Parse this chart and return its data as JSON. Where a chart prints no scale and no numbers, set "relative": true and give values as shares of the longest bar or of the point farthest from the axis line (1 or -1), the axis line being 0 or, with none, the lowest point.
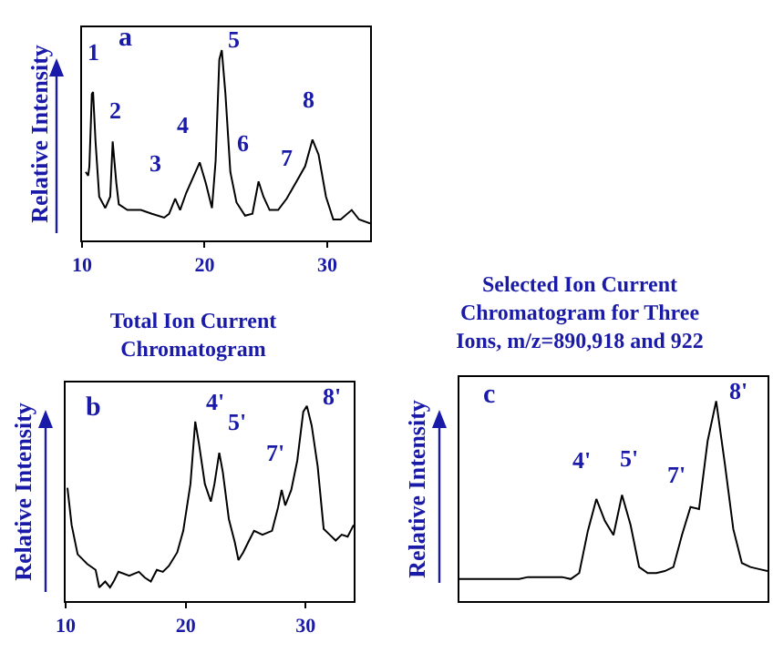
{
  "chart_data": [
    {
      "type": "line",
      "relative": true,
      "ylabel": "Relative Intensity",
      "xlim": [
        10,
        33.5
      ],
      "xticks": [
        10,
        20,
        30
      ],
      "tick_labels": "x",
      "x": [
        10.3,
        10.5,
        10.6,
        10.8,
        10.9,
        11.1,
        11.4,
        11.9,
        12.3,
        12.5,
        12.8,
        13.0,
        13.7,
        14.8,
        15.7,
        16.7,
        17.1,
        17.6,
        18.0,
        18.5,
        19.6,
        20.1,
        20.6,
        20.9,
        21.2,
        21.4,
        21.7,
        22.1,
        22.6,
        23.3,
        23.9,
        24.4,
        24.8,
        25.3,
        26.0,
        26.7,
        27.5,
        28.2,
        28.8,
        29.3,
        29.9,
        30.5,
        31.1,
        32.0,
        32.6,
        33.5
      ],
      "series": [
        {
          "color": "#000000",
          "values": [
            0.36,
            0.34,
            0.39,
            0.77,
            0.78,
            0.52,
            0.23,
            0.17,
            0.23,
            0.52,
            0.3,
            0.19,
            0.16,
            0.16,
            0.14,
            0.12,
            0.14,
            0.22,
            0.16,
            0.25,
            0.41,
            0.3,
            0.17,
            0.42,
            0.95,
            1.0,
            0.77,
            0.36,
            0.2,
            0.13,
            0.14,
            0.31,
            0.23,
            0.16,
            0.16,
            0.22,
            0.31,
            0.39,
            0.53,
            0.45,
            0.23,
            0.11,
            0.11,
            0.16,
            0.11,
            0.09
          ]
        }
      ],
      "annotations": [
        "a",
        "1",
        "2",
        "3",
        "4",
        "5",
        "6",
        "7",
        "8"
      ]
    },
    {
      "type": "line",
      "relative": true,
      "title": "Total Ion Current Chromatogram",
      "ylabel": "Relative Intensity",
      "xlim": [
        10,
        34
      ],
      "xticks": [
        10,
        20,
        30
      ],
      "tick_labels": "x",
      "x": [
        10.15,
        10.5,
        11.0,
        11.8,
        12.5,
        12.8,
        13.3,
        13.7,
        14.0,
        14.4,
        15.3,
        16.1,
        16.6,
        17.1,
        17.6,
        18.1,
        18.6,
        19.3,
        19.8,
        20.4,
        20.8,
        21.1,
        21.6,
        22.1,
        22.4,
        22.8,
        23.1,
        23.6,
        24.1,
        24.4,
        24.8,
        25.2,
        25.7,
        26.4,
        27.2,
        27.7,
        28.0,
        28.3,
        28.8,
        29.3,
        29.8,
        30.1,
        30.5,
        31.0,
        31.5,
        32.0,
        32.5,
        33.0,
        33.5,
        34.0
      ],
      "series": [
        {
          "color": "#000000",
          "values": [
            0.58,
            0.39,
            0.24,
            0.19,
            0.16,
            0.07,
            0.1,
            0.07,
            0.1,
            0.15,
            0.13,
            0.15,
            0.12,
            0.1,
            0.16,
            0.15,
            0.18,
            0.25,
            0.36,
            0.6,
            0.92,
            0.81,
            0.6,
            0.51,
            0.6,
            0.76,
            0.66,
            0.42,
            0.3,
            0.21,
            0.25,
            0.3,
            0.36,
            0.34,
            0.36,
            0.48,
            0.57,
            0.49,
            0.57,
            0.72,
            0.97,
            1.0,
            0.9,
            0.69,
            0.37,
            0.34,
            0.31,
            0.34,
            0.33,
            0.39
          ]
        }
      ],
      "annotations": [
        "b",
        "4'",
        "5'",
        "7'",
        "8'"
      ]
    },
    {
      "type": "line",
      "relative": true,
      "title": "Selected Ion Current Chromatogram for Three Ions, m/z=890,918 and 922",
      "ylabel": "Relative Intensity",
      "tick_labels": false,
      "categories": [
        null,
        null,
        null,
        null,
        null,
        null,
        null,
        null,
        null,
        null,
        null,
        null,
        null,
        null,
        null,
        null,
        null,
        null,
        null,
        null,
        null,
        null,
        null,
        null,
        null,
        null,
        null,
        null,
        null,
        null,
        null,
        null,
        null,
        null,
        null,
        null,
        null
      ],
      "series": [
        {
          "color": "#000000",
          "values": [
            0.11,
            0.11,
            0.11,
            0.11,
            0.11,
            0.11,
            0.11,
            0.11,
            0.12,
            0.12,
            0.12,
            0.12,
            0.12,
            0.11,
            0.14,
            0.35,
            0.51,
            0.4,
            0.33,
            0.53,
            0.38,
            0.17,
            0.14,
            0.14,
            0.15,
            0.17,
            0.33,
            0.47,
            0.46,
            0.8,
            1.0,
            0.69,
            0.36,
            0.19,
            0.17,
            0.16,
            0.15
          ]
        }
      ],
      "annotations": [
        "c",
        "4'",
        "5'",
        "7'",
        "8'"
      ]
    }
  ]
}
